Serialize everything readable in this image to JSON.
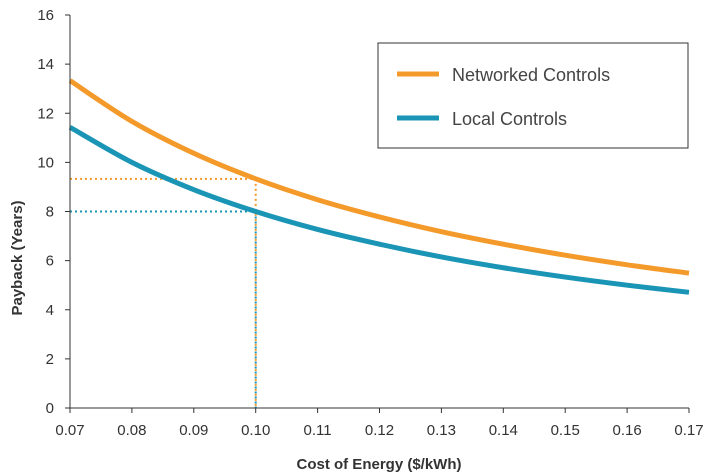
{
  "chart_data": {
    "type": "line",
    "xlabel": "Cost of Energy ($/kWh)",
    "ylabel": "Payback (Years)",
    "xlim": [
      0.07,
      0.17
    ],
    "ylim": [
      0,
      16
    ],
    "xticks": [
      "0.07",
      "0.08",
      "0.09",
      "0.10",
      "0.11",
      "0.12",
      "0.13",
      "0.14",
      "0.15",
      "0.16",
      "0.17"
    ],
    "yticks": [
      "0",
      "2",
      "4",
      "6",
      "8",
      "10",
      "12",
      "14",
      "16"
    ],
    "grid": false,
    "legend_position": "top-right",
    "series": [
      {
        "name": "Networked Controls",
        "color": "#f39a2b",
        "x": [
          0.07,
          0.08,
          0.09,
          0.1,
          0.11,
          0.12,
          0.13,
          0.14,
          0.15,
          0.16,
          0.17
        ],
        "y": [
          13.33,
          11.67,
          10.37,
          9.33,
          8.48,
          7.78,
          7.18,
          6.67,
          6.22,
          5.83,
          5.49
        ]
      },
      {
        "name": "Local Controls",
        "color": "#1a95b5",
        "x": [
          0.07,
          0.08,
          0.09,
          0.1,
          0.11,
          0.12,
          0.13,
          0.14,
          0.15,
          0.16,
          0.17
        ],
        "y": [
          11.43,
          10.0,
          8.89,
          8.0,
          7.27,
          6.67,
          6.15,
          5.71,
          5.33,
          5.0,
          4.71
        ]
      }
    ],
    "reference_lines": [
      {
        "x": 0.1,
        "y": 9.33,
        "color": "#f39a2b",
        "style": "dotted"
      },
      {
        "x": 0.1,
        "y": 8.0,
        "color": "#1a95b5",
        "style": "dotted"
      }
    ]
  }
}
